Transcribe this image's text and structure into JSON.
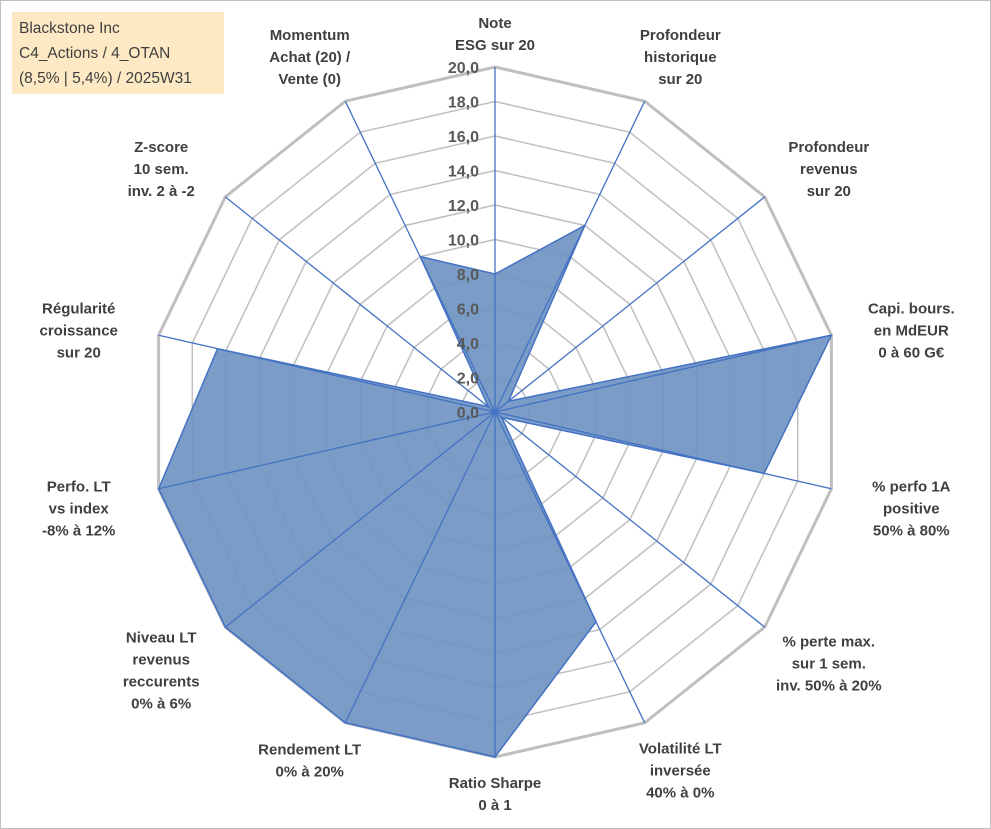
{
  "header": {
    "line1": "Blackstone Inc",
    "line2": "C4_Actions / 4_OTAN",
    "line3": "(8,5% | 5,4%) / 2025W31"
  },
  "chart_data": {
    "type": "radar",
    "title": "",
    "rlim": [
      0,
      20
    ],
    "tick_step": 2,
    "tick_labels": [
      "0,0",
      "2,0",
      "4,0",
      "6,0",
      "8,0",
      "10,0",
      "12,0",
      "14,0",
      "16,0",
      "18,0",
      "20,0"
    ],
    "grid": true,
    "fill_color": "#6f94c1",
    "axis_color": "#4472c4",
    "grid_color": "#bfbfbf",
    "axes": [
      {
        "label": [
          "Note",
          "ESG sur 20"
        ]
      },
      {
        "label": [
          "Profondeur",
          "historique",
          "sur 20"
        ]
      },
      {
        "label": [
          "Profondeur",
          "revenus",
          "sur 20"
        ]
      },
      {
        "label": [
          "Capi. bours.",
          "en MdEUR",
          "0 à 60 G€"
        ]
      },
      {
        "label": [
          "% perfo 1A",
          "positive",
          "50% à 80%"
        ]
      },
      {
        "label": [
          "% perte max.",
          "sur 1 sem.",
          "inv. 50% à 20%"
        ]
      },
      {
        "label": [
          "Volatilité LT",
          "inversée",
          "40% à 0%"
        ]
      },
      {
        "label": [
          "Ratio Sharpe",
          "0 à 1"
        ]
      },
      {
        "label": [
          "Rendement LT",
          "0% à 20%"
        ]
      },
      {
        "label": [
          "Niveau LT",
          "revenus",
          "reccurents",
          "0% à 6%"
        ]
      },
      {
        "label": [
          "Perfo. LT",
          "vs index",
          "-8% à 12%"
        ]
      },
      {
        "label": [
          "Régularité",
          "croissance",
          "sur 20"
        ]
      },
      {
        "label": [
          "Z-score",
          "10 sem.",
          "inv. 2 à -2"
        ]
      },
      {
        "label": [
          "Momentum",
          "Achat (20) /",
          "Vente (0)"
        ]
      }
    ],
    "series": [
      {
        "values": [
          8.0,
          12.0,
          1.0,
          20.0,
          16.0,
          0.5,
          13.5,
          20.0,
          20.0,
          20.0,
          20.0,
          16.5,
          0.5,
          10.0
        ]
      }
    ]
  }
}
